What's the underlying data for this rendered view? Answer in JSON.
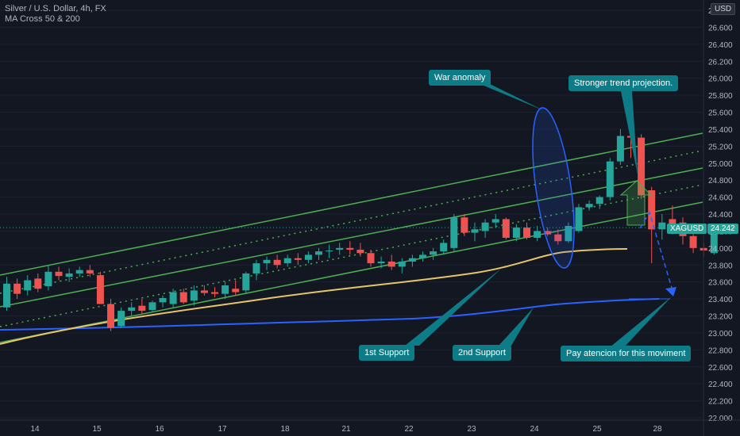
{
  "legend": {
    "title": "Silver / U.S. Dollar, 4h, FX",
    "indicator": "MA Cross 50 & 200"
  },
  "currency": "USD",
  "last_price": {
    "symbol": "XAGUSD",
    "value": "24.242",
    "numeric": 24.242
  },
  "annotations": {
    "war_anomaly": "War anomaly",
    "stronger_trend": "Stronger trend projection.",
    "support_1": "1st Support",
    "support_2": "2nd Support",
    "pay_attention": "Pay atencion for this moviment"
  },
  "colors": {
    "background": "#131722",
    "bull": "#26a69a",
    "bear": "#ef5350",
    "channel": "#4caf50",
    "ma50": "#e6c46a",
    "ma200": "#2962ff",
    "callout": "#0e7c86",
    "axis_text": "#b2b5be"
  },
  "chart_data": {
    "type": "candlestick",
    "y_axis": {
      "min": 22.0,
      "max": 26.8,
      "step": 0.2,
      "tick_labels": [
        "22.000",
        "22.200",
        "22.400",
        "22.600",
        "22.800",
        "23.000",
        "23.200",
        "23.400",
        "23.600",
        "23.800",
        "24.000",
        "24.200",
        "24.400",
        "24.600",
        "24.800",
        "25.000",
        "25.200",
        "25.400",
        "25.600",
        "25.800",
        "26.000",
        "26.200",
        "26.400",
        "26.600",
        "26.800"
      ]
    },
    "x_axis": {
      "tick_labels": [
        "14",
        "15",
        "16",
        "17",
        "18",
        "21",
        "22",
        "23",
        "24",
        "25",
        "28"
      ]
    },
    "candles": [
      {
        "o": 23.3,
        "h": 23.66,
        "l": 23.26,
        "c": 23.58
      },
      {
        "o": 23.58,
        "h": 23.64,
        "l": 23.4,
        "c": 23.46
      },
      {
        "o": 23.5,
        "h": 23.68,
        "l": 23.44,
        "c": 23.62
      },
      {
        "o": 23.64,
        "h": 23.7,
        "l": 23.48,
        "c": 23.52
      },
      {
        "o": 23.55,
        "h": 23.8,
        "l": 23.5,
        "c": 23.72
      },
      {
        "o": 23.72,
        "h": 23.78,
        "l": 23.62,
        "c": 23.67
      },
      {
        "o": 23.66,
        "h": 23.76,
        "l": 23.6,
        "c": 23.7
      },
      {
        "o": 23.7,
        "h": 23.78,
        "l": 23.66,
        "c": 23.74
      },
      {
        "o": 23.74,
        "h": 23.8,
        "l": 23.66,
        "c": 23.7
      },
      {
        "o": 23.68,
        "h": 23.72,
        "l": 23.34,
        "c": 23.34
      },
      {
        "o": 23.34,
        "h": 23.4,
        "l": 23.02,
        "c": 23.06
      },
      {
        "o": 23.08,
        "h": 23.3,
        "l": 23.06,
        "c": 23.26
      },
      {
        "o": 23.26,
        "h": 23.36,
        "l": 23.2,
        "c": 23.3
      },
      {
        "o": 23.32,
        "h": 23.4,
        "l": 23.22,
        "c": 23.26
      },
      {
        "o": 23.27,
        "h": 23.38,
        "l": 23.24,
        "c": 23.36
      },
      {
        "o": 23.36,
        "h": 23.44,
        "l": 23.3,
        "c": 23.41
      },
      {
        "o": 23.34,
        "h": 23.52,
        "l": 23.3,
        "c": 23.48
      },
      {
        "o": 23.48,
        "h": 23.52,
        "l": 23.34,
        "c": 23.36
      },
      {
        "o": 23.38,
        "h": 23.56,
        "l": 23.32,
        "c": 23.5
      },
      {
        "o": 23.5,
        "h": 23.56,
        "l": 23.44,
        "c": 23.47
      },
      {
        "o": 23.48,
        "h": 23.54,
        "l": 23.42,
        "c": 23.46
      },
      {
        "o": 23.46,
        "h": 23.6,
        "l": 23.4,
        "c": 23.56
      },
      {
        "o": 23.52,
        "h": 23.62,
        "l": 23.44,
        "c": 23.48
      },
      {
        "o": 23.5,
        "h": 23.72,
        "l": 23.46,
        "c": 23.7
      },
      {
        "o": 23.7,
        "h": 23.86,
        "l": 23.62,
        "c": 23.82
      },
      {
        "o": 23.82,
        "h": 23.9,
        "l": 23.74,
        "c": 23.86
      },
      {
        "o": 23.86,
        "h": 23.92,
        "l": 23.76,
        "c": 23.8
      },
      {
        "o": 23.82,
        "h": 23.92,
        "l": 23.78,
        "c": 23.88
      },
      {
        "o": 23.88,
        "h": 23.94,
        "l": 23.8,
        "c": 23.86
      },
      {
        "o": 23.86,
        "h": 23.96,
        "l": 23.82,
        "c": 23.92
      },
      {
        "o": 23.92,
        "h": 24.0,
        "l": 23.86,
        "c": 23.96
      },
      {
        "o": 23.96,
        "h": 24.04,
        "l": 23.88,
        "c": 23.97
      },
      {
        "o": 23.98,
        "h": 24.06,
        "l": 23.92,
        "c": 24.0
      },
      {
        "o": 24.0,
        "h": 24.08,
        "l": 23.92,
        "c": 23.98
      },
      {
        "o": 23.98,
        "h": 24.06,
        "l": 23.9,
        "c": 23.94
      },
      {
        "o": 23.94,
        "h": 23.98,
        "l": 23.78,
        "c": 23.82
      },
      {
        "o": 23.82,
        "h": 23.9,
        "l": 23.76,
        "c": 23.84
      },
      {
        "o": 23.84,
        "h": 23.92,
        "l": 23.74,
        "c": 23.78
      },
      {
        "o": 23.78,
        "h": 23.88,
        "l": 23.7,
        "c": 23.84
      },
      {
        "o": 23.84,
        "h": 23.92,
        "l": 23.78,
        "c": 23.88
      },
      {
        "o": 23.88,
        "h": 23.96,
        "l": 23.84,
        "c": 23.92
      },
      {
        "o": 23.92,
        "h": 24.0,
        "l": 23.86,
        "c": 23.96
      },
      {
        "o": 23.96,
        "h": 24.1,
        "l": 23.92,
        "c": 24.06
      },
      {
        "o": 24.0,
        "h": 24.4,
        "l": 23.96,
        "c": 24.36
      },
      {
        "o": 24.36,
        "h": 24.4,
        "l": 24.14,
        "c": 24.18
      },
      {
        "o": 24.18,
        "h": 24.3,
        "l": 24.08,
        "c": 24.22
      },
      {
        "o": 24.2,
        "h": 24.34,
        "l": 24.12,
        "c": 24.3
      },
      {
        "o": 24.3,
        "h": 24.4,
        "l": 24.24,
        "c": 24.34
      },
      {
        "o": 24.34,
        "h": 24.36,
        "l": 24.1,
        "c": 24.12
      },
      {
        "o": 24.12,
        "h": 24.28,
        "l": 24.08,
        "c": 24.24
      },
      {
        "o": 24.24,
        "h": 24.3,
        "l": 24.1,
        "c": 24.12
      },
      {
        "o": 24.12,
        "h": 24.26,
        "l": 24.08,
        "c": 24.2
      },
      {
        "o": 24.2,
        "h": 24.24,
        "l": 24.14,
        "c": 24.16
      },
      {
        "o": 24.16,
        "h": 24.22,
        "l": 24.04,
        "c": 24.08
      },
      {
        "o": 24.08,
        "h": 24.3,
        "l": 24.06,
        "c": 24.26
      },
      {
        "o": 24.2,
        "h": 24.52,
        "l": 24.18,
        "c": 24.48
      },
      {
        "o": 24.48,
        "h": 24.56,
        "l": 24.44,
        "c": 24.52
      },
      {
        "o": 24.52,
        "h": 24.62,
        "l": 24.46,
        "c": 24.6
      },
      {
        "o": 24.6,
        "h": 25.06,
        "l": 24.56,
        "c": 25.02
      },
      {
        "o": 25.02,
        "h": 25.4,
        "l": 24.98,
        "c": 25.32
      },
      {
        "o": 25.32,
        "h": 25.6,
        "l": 25.06,
        "c": 25.3
      },
      {
        "o": 25.3,
        "h": 25.34,
        "l": 24.58,
        "c": 24.62
      },
      {
        "o": 24.68,
        "h": 24.72,
        "l": 23.82,
        "c": 24.22
      },
      {
        "o": 24.22,
        "h": 24.4,
        "l": 24.1,
        "c": 24.3
      },
      {
        "o": 24.34,
        "h": 24.5,
        "l": 24.16,
        "c": 24.28
      },
      {
        "o": 24.3,
        "h": 24.36,
        "l": 24.04,
        "c": 24.14
      },
      {
        "o": 24.14,
        "h": 24.22,
        "l": 23.94,
        "c": 24.0
      },
      {
        "o": 24.0,
        "h": 24.06,
        "l": 23.9,
        "c": 23.97
      },
      {
        "o": 23.94,
        "h": 24.28,
        "l": 23.92,
        "c": 24.24
      }
    ]
  }
}
